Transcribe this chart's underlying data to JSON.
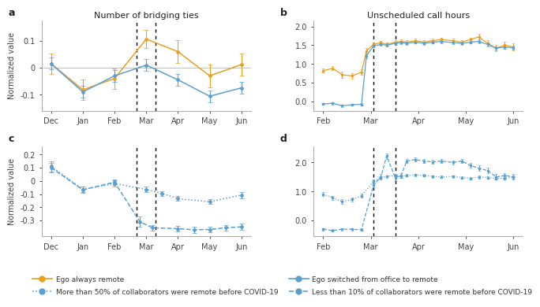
{
  "panel_a": {
    "title": "Number of bridging ties",
    "xlabel_ticks": [
      "Dec",
      "Jan",
      "Feb",
      "Mar",
      "Apr",
      "May",
      "Jun"
    ],
    "ylabel": "Normalized value",
    "vlines": [
      2.7,
      3.3
    ],
    "orange": {
      "x": [
        0,
        1,
        2,
        3,
        4,
        5,
        6
      ],
      "y": [
        0.015,
        -0.082,
        -0.04,
        0.107,
        0.06,
        -0.03,
        0.012
      ],
      "yerr": [
        0.038,
        0.038,
        0.038,
        0.033,
        0.042,
        0.042,
        0.04
      ]
    },
    "blue": {
      "x": [
        0,
        1,
        2,
        3,
        4,
        5,
        6
      ],
      "y": [
        0.015,
        -0.09,
        -0.03,
        0.01,
        -0.045,
        -0.106,
        -0.075
      ],
      "yerr": [
        0.022,
        0.022,
        0.022,
        0.022,
        0.022,
        0.022,
        0.022
      ]
    },
    "ylim": [
      -0.16,
      0.175
    ],
    "yticks": [
      -0.1,
      0.0,
      0.1
    ]
  },
  "panel_b": {
    "title": "Unscheduled call hours",
    "xlabel_ticks": [
      "Feb",
      "Mar",
      "Apr",
      "May",
      "Jun"
    ],
    "vlines": [
      1.75,
      2.5
    ],
    "orange": {
      "x": [
        0,
        0.33,
        0.66,
        1.0,
        1.33,
        1.5,
        1.75,
        2.0,
        2.2,
        2.5,
        2.7,
        2.9,
        3.2,
        3.5,
        3.8,
        4.1,
        4.5,
        4.8,
        5.1,
        5.4,
        5.7,
        6.0,
        6.3,
        6.6
      ],
      "y": [
        0.82,
        0.88,
        0.71,
        0.68,
        0.78,
        1.35,
        1.52,
        1.57,
        1.52,
        1.58,
        1.6,
        1.58,
        1.62,
        1.58,
        1.62,
        1.65,
        1.62,
        1.58,
        1.65,
        1.72,
        1.55,
        1.42,
        1.5,
        1.45
      ],
      "yerr": [
        0.05,
        0.05,
        0.09,
        0.07,
        0.07,
        0.07,
        0.05,
        0.05,
        0.05,
        0.05,
        0.05,
        0.05,
        0.05,
        0.05,
        0.05,
        0.05,
        0.05,
        0.05,
        0.05,
        0.09,
        0.09,
        0.09,
        0.09,
        0.09
      ]
    },
    "blue": {
      "x": [
        0,
        0.33,
        0.66,
        1.0,
        1.33,
        1.5,
        1.75,
        2.0,
        2.2,
        2.5,
        2.7,
        2.9,
        3.2,
        3.5,
        3.8,
        4.1,
        4.5,
        4.8,
        5.1,
        5.4,
        5.7,
        6.0,
        6.3,
        6.6
      ],
      "y": [
        -0.07,
        -0.05,
        -0.12,
        -0.09,
        -0.08,
        1.22,
        1.48,
        1.52,
        1.5,
        1.55,
        1.57,
        1.55,
        1.58,
        1.55,
        1.58,
        1.6,
        1.57,
        1.55,
        1.58,
        1.6,
        1.52,
        1.42,
        1.45,
        1.43
      ],
      "yerr": [
        0.03,
        0.03,
        0.04,
        0.03,
        0.03,
        0.06,
        0.04,
        0.04,
        0.04,
        0.04,
        0.04,
        0.04,
        0.04,
        0.04,
        0.04,
        0.04,
        0.04,
        0.04,
        0.04,
        0.05,
        0.05,
        0.05,
        0.05,
        0.05
      ]
    },
    "ylim": [
      -0.25,
      2.15
    ],
    "yticks": [
      0.0,
      0.5,
      1.0,
      1.5,
      2.0
    ],
    "xtick_pos": [
      0,
      1.65,
      3.3,
      4.95,
      6.6
    ]
  },
  "panel_c": {
    "xlabel_ticks": [
      "Dec",
      "Jan",
      "Feb",
      "Mar",
      "Apr",
      "May",
      "Jun"
    ],
    "ylabel": "Normalized value",
    "vlines": [
      2.7,
      3.3
    ],
    "dotted": {
      "x": [
        0,
        1,
        2,
        3,
        3.5,
        4,
        5,
        6
      ],
      "y": [
        0.11,
        -0.065,
        -0.02,
        -0.065,
        -0.095,
        -0.135,
        -0.158,
        -0.108
      ],
      "yerr": [
        0.038,
        0.022,
        0.022,
        0.022,
        0.018,
        0.018,
        0.018,
        0.022
      ]
    },
    "dashed": {
      "x": [
        0,
        1,
        2,
        2.8,
        3.2,
        4,
        4.5,
        5,
        5.5,
        6
      ],
      "y": [
        0.1,
        -0.068,
        -0.01,
        -0.31,
        -0.355,
        -0.362,
        -0.37,
        -0.368,
        -0.355,
        -0.348
      ],
      "yerr": [
        0.038,
        0.022,
        0.022,
        0.038,
        0.022,
        0.022,
        0.022,
        0.022,
        0.022,
        0.022
      ]
    },
    "ylim": [
      -0.42,
      0.26
    ],
    "yticks": [
      -0.3,
      -0.2,
      -0.1,
      0.0,
      0.1,
      0.2
    ]
  },
  "panel_d": {
    "xlabel_ticks": [
      "Feb",
      "Mar",
      "Apr",
      "May",
      "Jun"
    ],
    "vlines": [
      1.75,
      2.5
    ],
    "dotted": {
      "x": [
        0,
        0.33,
        0.66,
        1.0,
        1.33,
        1.75,
        2.0,
        2.2,
        2.5,
        2.7,
        2.9,
        3.2,
        3.5,
        3.8,
        4.1,
        4.5,
        4.8,
        5.1,
        5.4,
        5.7,
        6.0,
        6.3,
        6.6
      ],
      "y": [
        0.9,
        0.78,
        0.65,
        0.72,
        0.85,
        1.35,
        1.48,
        1.52,
        1.55,
        1.52,
        1.55,
        1.57,
        1.55,
        1.52,
        1.5,
        1.52,
        1.48,
        1.45,
        1.5,
        1.48,
        1.45,
        1.45,
        1.5
      ],
      "yerr": [
        0.07,
        0.07,
        0.07,
        0.07,
        0.07,
        0.06,
        0.04,
        0.04,
        0.04,
        0.04,
        0.04,
        0.04,
        0.04,
        0.04,
        0.04,
        0.04,
        0.04,
        0.05,
        0.05,
        0.05,
        0.05,
        0.05,
        0.05
      ]
    },
    "dashed": {
      "x": [
        0,
        0.33,
        0.66,
        1.0,
        1.33,
        1.75,
        2.0,
        2.2,
        2.5,
        2.7,
        2.9,
        3.2,
        3.5,
        3.8,
        4.1,
        4.5,
        4.8,
        5.1,
        5.4,
        5.7,
        6.0,
        6.3,
        6.6
      ],
      "y": [
        -0.3,
        -0.35,
        -0.3,
        -0.31,
        -0.32,
        1.22,
        1.5,
        2.22,
        1.48,
        1.55,
        2.05,
        2.1,
        2.05,
        2.02,
        2.05,
        2.0,
        2.05,
        1.9,
        1.8,
        1.72,
        1.5,
        1.55,
        1.5
      ],
      "yerr": [
        0.04,
        0.04,
        0.04,
        0.04,
        0.04,
        0.09,
        0.09,
        0.09,
        0.09,
        0.07,
        0.07,
        0.07,
        0.07,
        0.07,
        0.07,
        0.07,
        0.07,
        0.09,
        0.09,
        0.09,
        0.09,
        0.09,
        0.09
      ]
    },
    "ylim": [
      -0.55,
      2.55
    ],
    "yticks": [
      0.0,
      1.0,
      2.0
    ],
    "xtick_pos": [
      0,
      1.65,
      3.3,
      4.95,
      6.6
    ]
  },
  "colors": {
    "orange": "#E8A020",
    "blue": "#5B9FD0",
    "spine": "#AAAAAA",
    "vline": "black"
  },
  "legend": {
    "orange_label": "Ego always remote",
    "blue_label": "Ego switched from office to remote",
    "dotted_label": "More than 50% of collaborators were remote before COVID-19",
    "dashed_label": "Less than 10% of collaborators were remote before COVID-19"
  }
}
